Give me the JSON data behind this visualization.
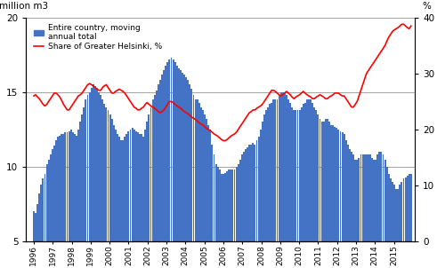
{
  "ylabel_left": "million m3",
  "ylabel_right": "%",
  "ylim_left": [
    5,
    20
  ],
  "ylim_right": [
    0,
    40
  ],
  "yticks_left": [
    5,
    10,
    15,
    20
  ],
  "yticks_right": [
    0,
    10,
    20,
    30,
    40
  ],
  "bar_color": "#4472C4",
  "line_color": "#FF0000",
  "legend_entries": [
    "Entire country, moving\nannual total",
    "Share of Greater Helsinki, %"
  ],
  "x_tick_years": [
    1996,
    1997,
    1998,
    1999,
    2000,
    2001,
    2002,
    2003,
    2004,
    2005,
    2006,
    2007,
    2008,
    2009,
    2010,
    2011,
    2012,
    2013,
    2014,
    2015
  ],
  "bar_data": [
    7.0,
    6.9,
    7.5,
    8.2,
    8.8,
    9.2,
    9.5,
    10.2,
    10.5,
    10.8,
    11.2,
    11.4,
    11.8,
    12.0,
    12.1,
    12.2,
    12.2,
    12.3,
    12.3,
    12.4,
    12.5,
    12.3,
    12.2,
    12.1,
    12.5,
    13.0,
    13.5,
    14.0,
    14.5,
    14.8,
    15.0,
    15.3,
    15.5,
    15.4,
    15.3,
    15.0,
    14.8,
    14.5,
    14.2,
    14.0,
    13.8,
    13.5,
    13.2,
    12.8,
    12.5,
    12.2,
    12.0,
    11.8,
    11.8,
    12.0,
    12.2,
    12.4,
    12.5,
    12.6,
    12.5,
    12.4,
    12.3,
    12.2,
    12.2,
    12.0,
    12.5,
    13.0,
    13.5,
    14.0,
    14.5,
    14.8,
    15.1,
    15.5,
    15.8,
    16.2,
    16.5,
    16.8,
    17.0,
    17.2,
    17.3,
    17.2,
    17.0,
    16.8,
    16.6,
    16.5,
    16.3,
    16.2,
    16.0,
    15.8,
    15.5,
    15.2,
    14.8,
    14.5,
    14.5,
    14.3,
    14.0,
    13.8,
    13.5,
    13.2,
    12.8,
    12.5,
    11.5,
    10.8,
    10.2,
    10.0,
    9.8,
    9.5,
    9.5,
    9.6,
    9.7,
    9.8,
    9.8,
    9.8,
    9.8,
    10.0,
    10.2,
    10.5,
    10.8,
    11.0,
    11.2,
    11.3,
    11.5,
    11.5,
    11.6,
    11.5,
    11.8,
    12.0,
    12.5,
    13.0,
    13.5,
    13.8,
    14.0,
    14.2,
    14.3,
    14.5,
    14.5,
    14.5,
    14.8,
    15.0,
    15.0,
    15.0,
    14.8,
    14.5,
    14.3,
    14.0,
    13.8,
    13.8,
    13.8,
    13.8,
    14.0,
    14.2,
    14.3,
    14.5,
    14.5,
    14.5,
    14.3,
    14.0,
    13.8,
    13.5,
    13.2,
    13.0,
    13.0,
    13.2,
    13.2,
    13.0,
    12.8,
    12.8,
    12.7,
    12.6,
    12.5,
    12.4,
    12.3,
    12.2,
    11.8,
    11.5,
    11.2,
    11.0,
    10.8,
    10.5,
    10.5,
    10.6,
    10.8,
    10.8,
    10.8,
    10.8,
    10.8,
    10.8,
    10.6,
    10.5,
    10.5,
    10.8,
    11.0,
    11.0,
    10.8,
    10.5,
    10.0,
    9.5,
    9.2,
    9.0,
    8.8,
    8.5,
    8.5,
    8.8,
    9.0,
    9.2,
    9.3,
    9.4,
    9.5,
    9.5
  ],
  "line_data": [
    26.0,
    26.2,
    25.8,
    25.5,
    25.0,
    24.5,
    24.2,
    24.5,
    25.0,
    25.5,
    26.0,
    26.5,
    26.5,
    26.2,
    25.8,
    25.2,
    24.5,
    24.0,
    23.5,
    23.5,
    24.0,
    24.5,
    25.0,
    25.5,
    26.0,
    26.2,
    26.5,
    27.0,
    27.5,
    28.0,
    28.2,
    28.0,
    27.8,
    27.5,
    27.2,
    27.0,
    27.0,
    27.5,
    27.8,
    28.0,
    27.5,
    27.0,
    26.5,
    26.5,
    26.8,
    27.0,
    27.2,
    27.0,
    26.8,
    26.5,
    26.0,
    25.5,
    25.0,
    24.5,
    24.0,
    23.8,
    23.5,
    23.5,
    23.8,
    24.0,
    24.5,
    24.8,
    24.5,
    24.2,
    24.0,
    23.8,
    23.5,
    23.2,
    23.0,
    23.2,
    23.5,
    24.0,
    24.5,
    25.0,
    25.0,
    24.8,
    24.5,
    24.2,
    24.0,
    23.8,
    23.5,
    23.2,
    23.0,
    22.8,
    22.5,
    22.2,
    22.0,
    21.8,
    21.5,
    21.2,
    21.0,
    20.8,
    20.5,
    20.2,
    20.0,
    19.8,
    19.5,
    19.2,
    19.0,
    18.8,
    18.5,
    18.2,
    18.0,
    18.0,
    18.2,
    18.5,
    18.8,
    19.0,
    19.2,
    19.5,
    20.0,
    20.5,
    21.0,
    21.5,
    22.0,
    22.5,
    23.0,
    23.2,
    23.5,
    23.5,
    23.8,
    24.0,
    24.2,
    24.5,
    25.0,
    25.5,
    26.0,
    26.5,
    27.0,
    27.0,
    26.8,
    26.5,
    26.2,
    26.0,
    26.2,
    26.5,
    26.8,
    26.5,
    26.2,
    25.8,
    25.5,
    25.8,
    26.0,
    26.2,
    26.5,
    26.8,
    26.5,
    26.2,
    26.0,
    25.8,
    25.5,
    25.5,
    25.8,
    26.0,
    26.2,
    26.0,
    25.8,
    25.5,
    25.5,
    25.8,
    26.0,
    26.2,
    26.5,
    26.5,
    26.5,
    26.2,
    26.0,
    26.0,
    25.5,
    25.0,
    24.5,
    24.0,
    24.0,
    24.5,
    25.0,
    26.0,
    27.0,
    28.0,
    29.0,
    30.0,
    30.5,
    31.0,
    31.5,
    32.0,
    32.5,
    33.0,
    33.5,
    34.0,
    34.5,
    35.0,
    35.8,
    36.5,
    37.0,
    37.5,
    37.8,
    38.0,
    38.2,
    38.5,
    38.8,
    38.8,
    38.5,
    38.2,
    38.0,
    38.5
  ]
}
